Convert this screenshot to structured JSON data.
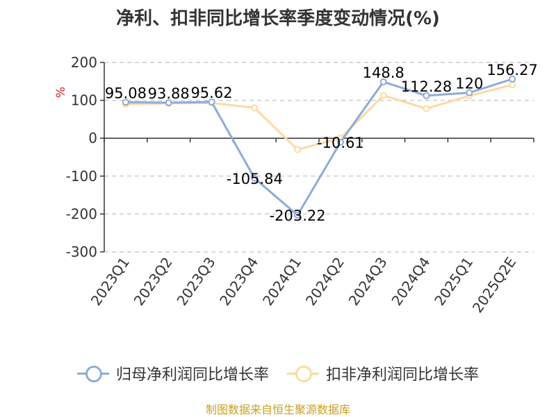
{
  "chart_data": {
    "type": "line",
    "title": "净利、扣非同比增长率季度变动情况(%)",
    "ylabel": "%",
    "ylim": [
      -300,
      200
    ],
    "yticks": [
      200,
      100,
      0,
      -100,
      -200,
      -300
    ],
    "grid": true,
    "legend_position": "bottom",
    "categories": [
      "2023Q1",
      "2023Q2",
      "2023Q3",
      "2023Q4",
      "2024Q1",
      "2024Q2",
      "2024Q3",
      "2024Q4",
      "2025Q1",
      "2025Q2E"
    ],
    "series": [
      {
        "name": "归母净利润同比增长率",
        "color": "#8eaadb",
        "values": [
          95.08,
          93.88,
          95.62,
          -105.84,
          -203.22,
          -10.61,
          148.8,
          112.28,
          120,
          156.27
        ],
        "labels": [
          "95.08",
          "93.88",
          "95.62",
          "-105.84",
          "-203.22",
          "-10.61",
          "148.8",
          "112.28",
          "120",
          "156.27"
        ]
      },
      {
        "name": "扣非净利润同比增长率",
        "color": "#fdd9a0",
        "values": [
          90,
          92,
          93,
          80,
          -30,
          0,
          113,
          78,
          112,
          141
        ]
      }
    ]
  },
  "source_note": "制图数据来自恒生聚源数据库"
}
